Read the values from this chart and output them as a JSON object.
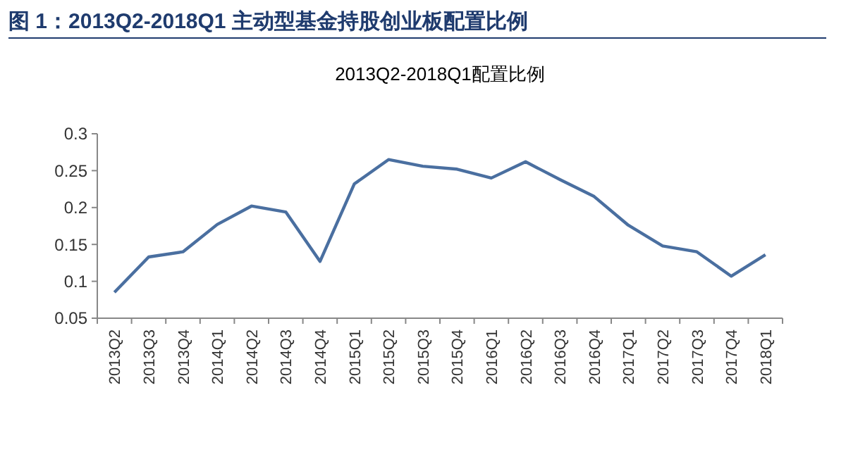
{
  "chart_data": {
    "type": "line",
    "title": "图 1：2013Q2-2018Q1 主动型基金持股创业板配置比例",
    "subtitle": "2013Q2-2018Q1配置比例",
    "categories": [
      "2013Q2",
      "2013Q3",
      "2013Q4",
      "2014Q1",
      "2014Q2",
      "2014Q3",
      "2014Q4",
      "2015Q1",
      "2015Q2",
      "2015Q3",
      "2015Q4",
      "2016Q1",
      "2016Q2",
      "2016Q3",
      "2016Q4",
      "2017Q1",
      "2017Q2",
      "2017Q3",
      "2017Q4",
      "2018Q1"
    ],
    "series": [
      {
        "color": "#4a6fa0",
        "values": [
          0.085,
          0.133,
          0.14,
          0.177,
          0.202,
          0.194,
          0.127,
          0.232,
          0.265,
          0.256,
          0.252,
          0.24,
          0.262,
          0.238,
          0.215,
          0.176,
          0.148,
          0.14,
          0.107,
          0.136
        ]
      }
    ],
    "ylim": [
      0.05,
      0.3
    ],
    "yticks": [
      0.05,
      0.1,
      0.15,
      0.2,
      0.25,
      0.3
    ],
    "grid": false,
    "marker": "none",
    "line_style": "solid"
  }
}
